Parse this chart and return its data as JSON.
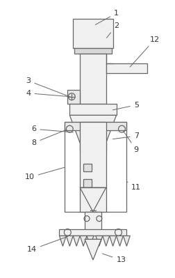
{
  "background_color": "#ffffff",
  "line_color": "#666666",
  "label_color": "#333333",
  "figsize": [
    2.53,
    3.99
  ],
  "dpi": 100,
  "lw": 0.9
}
